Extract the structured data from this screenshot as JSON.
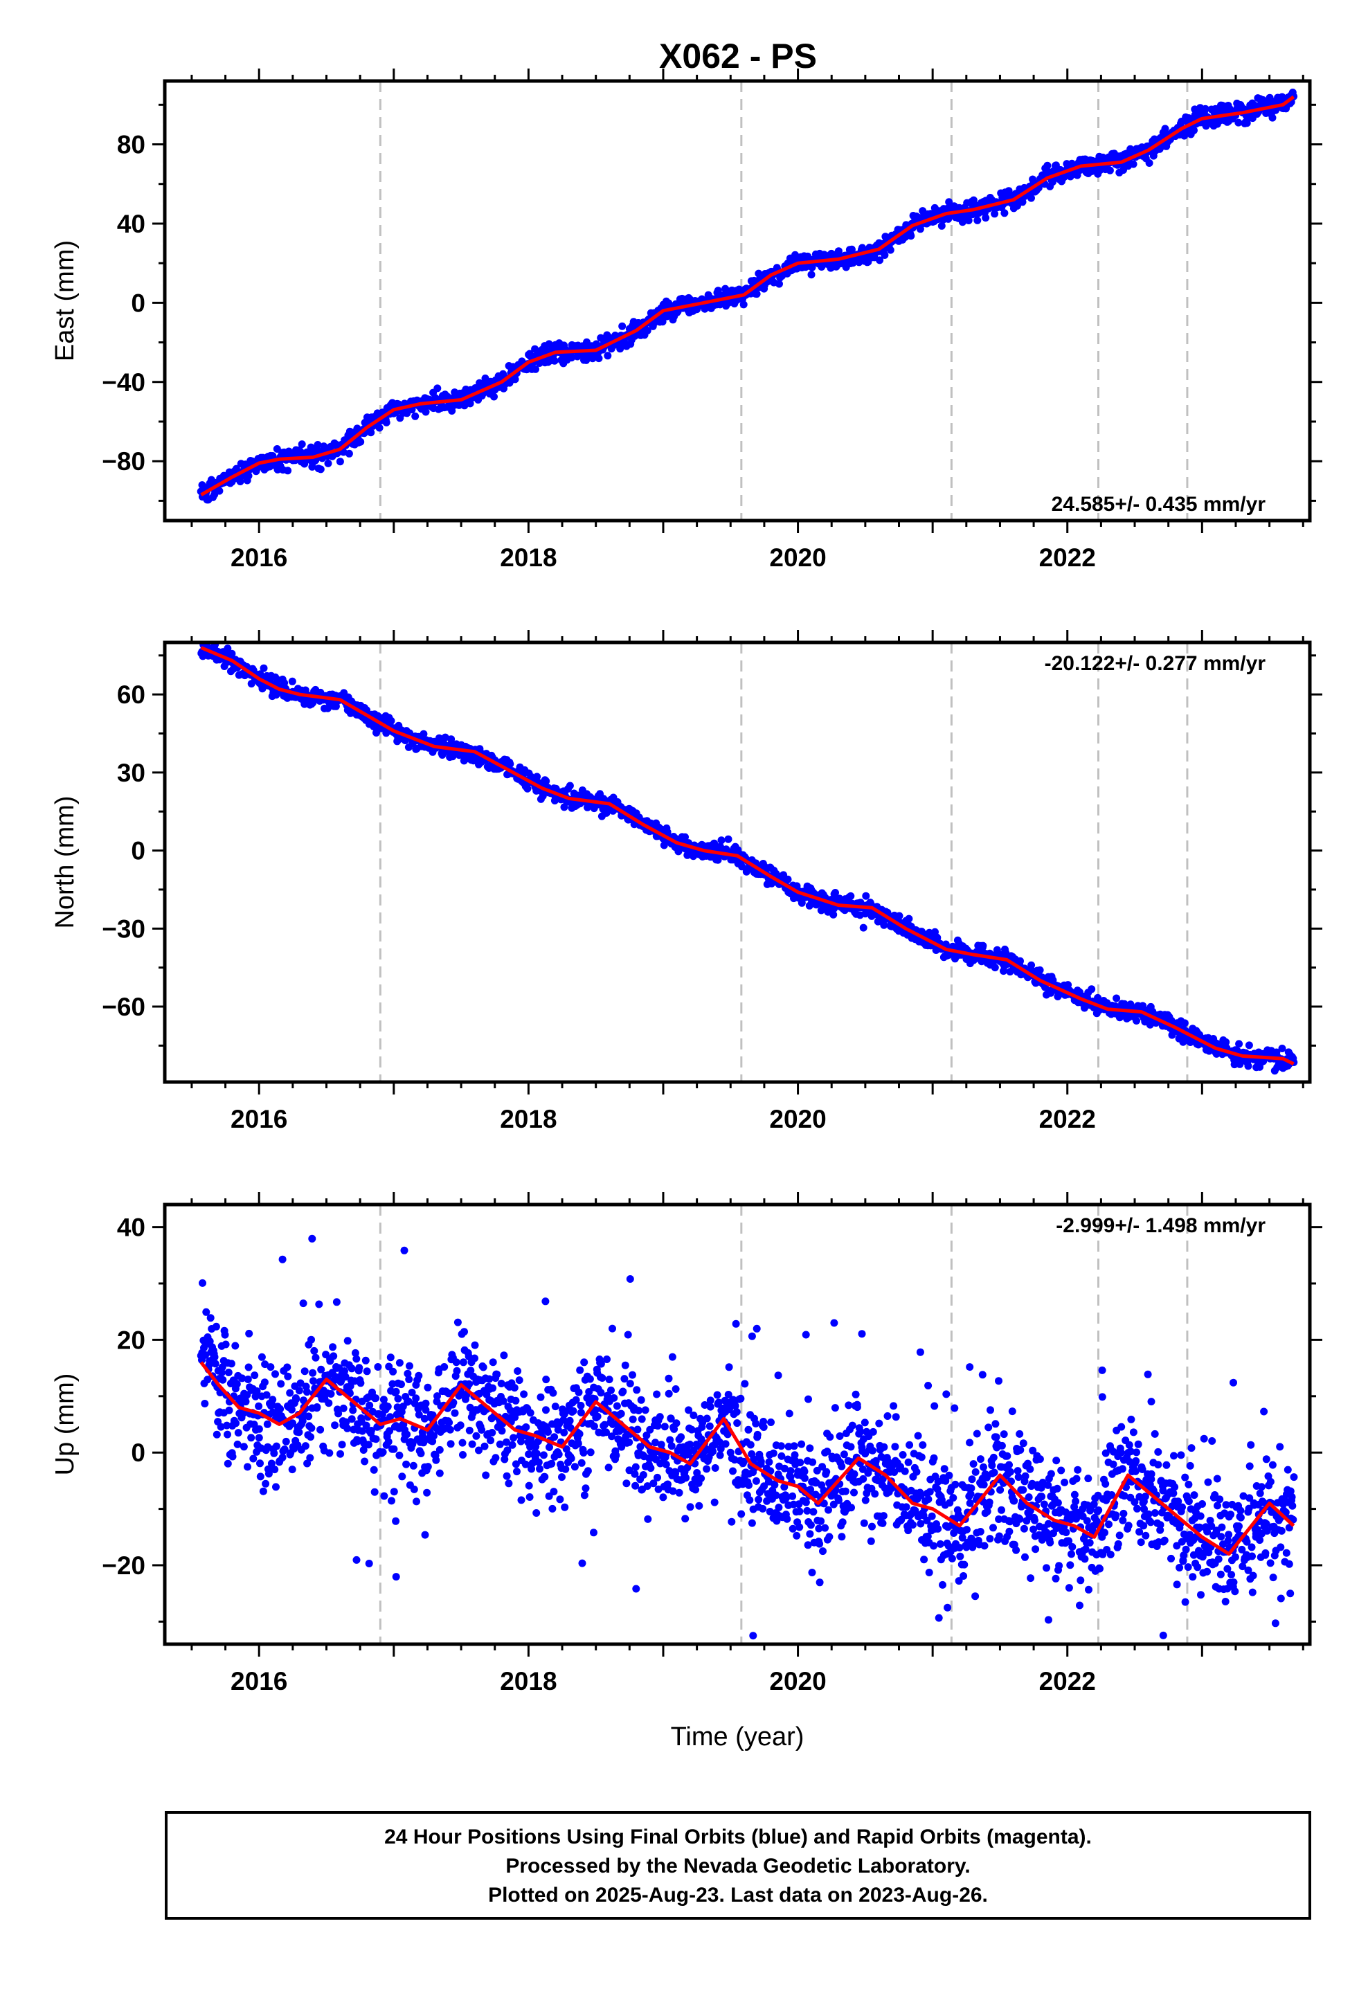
{
  "title": "X062 - PS",
  "colors": {
    "points": "#0000ff",
    "fit": "#ff0000",
    "breaks": "#c0c0c0",
    "frame": "#000000"
  },
  "chart_data": [
    {
      "type": "scatter",
      "name": "east",
      "ylabel": "East (mm)",
      "xlabel": "",
      "xlim": [
        2015.3,
        2023.8
      ],
      "ylim": [
        -110,
        112
      ],
      "xticks": [
        2016,
        2018,
        2020,
        2022
      ],
      "yticks": [
        -80,
        -40,
        0,
        40,
        80
      ],
      "rate": "24.585+/- 0.435 mm/yr",
      "rate_position": "bottom-right",
      "breaks": [
        2016.9,
        2019.58,
        2021.14,
        2022.23,
        2022.89
      ],
      "trend_fit": [
        [
          2015.57,
          -97
        ],
        [
          2015.8,
          -88
        ],
        [
          2016.0,
          -81
        ],
        [
          2016.15,
          -79
        ],
        [
          2016.4,
          -78
        ],
        [
          2016.6,
          -74
        ],
        [
          2016.8,
          -63
        ],
        [
          2017.0,
          -54
        ],
        [
          2017.2,
          -51
        ],
        [
          2017.5,
          -49
        ],
        [
          2017.8,
          -40
        ],
        [
          2018.0,
          -30
        ],
        [
          2018.2,
          -25
        ],
        [
          2018.5,
          -24
        ],
        [
          2018.8,
          -14
        ],
        [
          2019.0,
          -4
        ],
        [
          2019.3,
          0
        ],
        [
          2019.6,
          4
        ],
        [
          2019.8,
          14
        ],
        [
          2020.0,
          20
        ],
        [
          2020.3,
          22
        ],
        [
          2020.6,
          27
        ],
        [
          2020.85,
          39
        ],
        [
          2021.1,
          45
        ],
        [
          2021.3,
          47
        ],
        [
          2021.6,
          52
        ],
        [
          2021.85,
          63
        ],
        [
          2022.1,
          69
        ],
        [
          2022.4,
          71
        ],
        [
          2022.6,
          77
        ],
        [
          2022.85,
          88
        ],
        [
          2023.0,
          93
        ],
        [
          2023.3,
          96
        ],
        [
          2023.6,
          100
        ],
        [
          2023.68,
          104
        ]
      ],
      "scatter": {
        "noise_mm": 2.5,
        "count": 1500,
        "outliers": 0
      }
    },
    {
      "type": "scatter",
      "name": "north",
      "ylabel": "North (mm)",
      "xlabel": "",
      "xlim": [
        2015.3,
        2023.8
      ],
      "ylim": [
        -89,
        80
      ],
      "xticks": [
        2016,
        2018,
        2020,
        2022
      ],
      "yticks": [
        -60,
        -30,
        0,
        30,
        60
      ],
      "rate": "-20.122+/- 0.277 mm/yr",
      "rate_position": "top-right",
      "breaks": [
        2016.9,
        2019.58,
        2021.14,
        2022.23,
        2022.89
      ],
      "trend_fit": [
        [
          2015.57,
          78
        ],
        [
          2015.8,
          73
        ],
        [
          2016.0,
          66
        ],
        [
          2016.15,
          62
        ],
        [
          2016.3,
          60
        ],
        [
          2016.6,
          58
        ],
        [
          2016.8,
          52
        ],
        [
          2017.0,
          46
        ],
        [
          2017.3,
          40
        ],
        [
          2017.6,
          38
        ],
        [
          2017.85,
          31
        ],
        [
          2018.1,
          24
        ],
        [
          2018.3,
          20
        ],
        [
          2018.6,
          18
        ],
        [
          2018.85,
          10
        ],
        [
          2019.1,
          3
        ],
        [
          2019.3,
          0
        ],
        [
          2019.55,
          -2
        ],
        [
          2019.8,
          -10
        ],
        [
          2020.0,
          -16
        ],
        [
          2020.3,
          -21
        ],
        [
          2020.55,
          -22
        ],
        [
          2020.8,
          -30
        ],
        [
          2021.1,
          -38
        ],
        [
          2021.3,
          -40
        ],
        [
          2021.55,
          -42
        ],
        [
          2021.8,
          -50
        ],
        [
          2022.1,
          -57
        ],
        [
          2022.3,
          -61
        ],
        [
          2022.55,
          -62
        ],
        [
          2022.8,
          -68
        ],
        [
          2023.1,
          -76
        ],
        [
          2023.3,
          -79
        ],
        [
          2023.6,
          -80
        ],
        [
          2023.68,
          -82
        ]
      ],
      "scatter": {
        "noise_mm": 1.8,
        "count": 1500,
        "outliers": 0
      }
    },
    {
      "type": "scatter",
      "name": "up",
      "ylabel": "Up (mm)",
      "xlabel": "Time (year)",
      "xlim": [
        2015.3,
        2023.8
      ],
      "ylim": [
        -34,
        44
      ],
      "xticks": [
        2016,
        2018,
        2020,
        2022
      ],
      "yticks": [
        -20,
        0,
        20,
        40
      ],
      "rate": "-2.999+/- 1.498 mm/yr",
      "rate_position": "top-right",
      "breaks": [
        2016.9,
        2019.58,
        2021.14,
        2022.23,
        2022.89
      ],
      "trend_fit": [
        [
          2015.57,
          16
        ],
        [
          2015.7,
          12
        ],
        [
          2015.85,
          8
        ],
        [
          2016.0,
          7
        ],
        [
          2016.15,
          5
        ],
        [
          2016.3,
          7
        ],
        [
          2016.5,
          13
        ],
        [
          2016.7,
          9
        ],
        [
          2016.9,
          5
        ],
        [
          2017.05,
          6
        ],
        [
          2017.25,
          4
        ],
        [
          2017.5,
          12
        ],
        [
          2017.7,
          8
        ],
        [
          2017.9,
          4
        ],
        [
          2018.05,
          3
        ],
        [
          2018.25,
          1
        ],
        [
          2018.5,
          9
        ],
        [
          2018.7,
          5
        ],
        [
          2018.9,
          1
        ],
        [
          2019.05,
          0
        ],
        [
          2019.2,
          -2
        ],
        [
          2019.45,
          6
        ],
        [
          2019.65,
          -2
        ],
        [
          2019.85,
          -5
        ],
        [
          2020.0,
          -6
        ],
        [
          2020.15,
          -9
        ],
        [
          2020.45,
          -1
        ],
        [
          2020.65,
          -4
        ],
        [
          2020.85,
          -9
        ],
        [
          2021.0,
          -10
        ],
        [
          2021.2,
          -13
        ],
        [
          2021.5,
          -4
        ],
        [
          2021.7,
          -9
        ],
        [
          2021.9,
          -12
        ],
        [
          2022.05,
          -13
        ],
        [
          2022.2,
          -15
        ],
        [
          2022.45,
          -4
        ],
        [
          2022.65,
          -8
        ],
        [
          2022.85,
          -12
        ],
        [
          2023.0,
          -15
        ],
        [
          2023.2,
          -18
        ],
        [
          2023.5,
          -9
        ],
        [
          2023.68,
          -13
        ]
      ],
      "scatter": {
        "noise_mm": 5.5,
        "count": 2100,
        "outliers": 40
      }
    }
  ],
  "footer": {
    "line1": "24 Hour Positions Using Final Orbits (blue) and Rapid Orbits (magenta).",
    "line2": "Processed by the Nevada Geodetic Laboratory.",
    "line3": "Plotted on 2025-Aug-23. Last data on 2023-Aug-26."
  }
}
